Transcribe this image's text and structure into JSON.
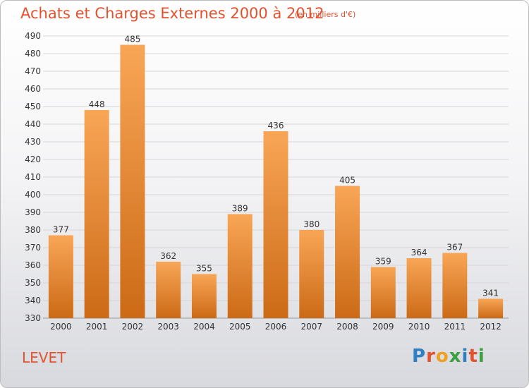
{
  "header": {
    "title": "Achats et Charges Externes 2000 à 2012",
    "subtitle": "(en milliers d'€)"
  },
  "footer": {
    "town": "LEVET",
    "logo": [
      "P",
      "r",
      "o",
      "x",
      "i",
      "t",
      "i"
    ],
    "logo_colors": [
      "#2f7fc1",
      "#e2522e",
      "#f0a020",
      "#3aa040",
      "#2f7fc1",
      "#e2522e",
      "#3aa040"
    ]
  },
  "colors": {
    "bar_top": "#f8a656",
    "bar_bottom": "#cc6a16",
    "grid": "#d6d6d6",
    "axis_text": "#333333",
    "title": "#e2522e"
  },
  "chart_data": {
    "type": "bar",
    "categories": [
      "2000",
      "2001",
      "2002",
      "2003",
      "2004",
      "2005",
      "2006",
      "2007",
      "2008",
      "2009",
      "2010",
      "2011",
      "2012"
    ],
    "values": [
      377,
      448,
      485,
      362,
      355,
      389,
      436,
      380,
      405,
      359,
      364,
      367,
      341
    ],
    "ylim": [
      330,
      490
    ],
    "ytick_step": 10,
    "grid": true,
    "data_labels": true
  }
}
